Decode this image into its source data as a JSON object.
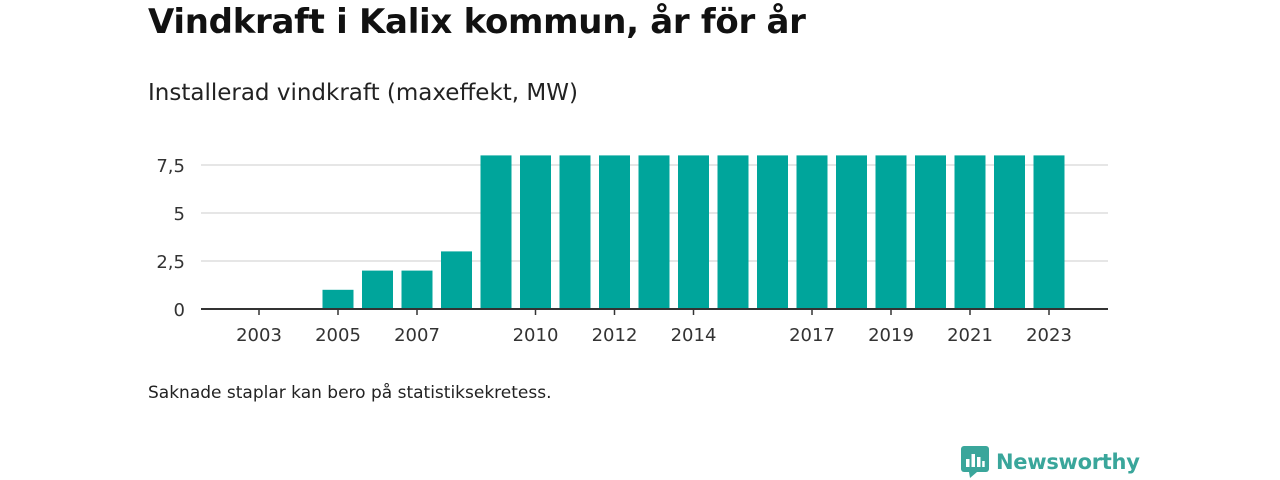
{
  "title": "Vindkraft i Kalix kommun, år för år",
  "subtitle": "Installerad vindkraft (maxeffekt, MW)",
  "note": "Saknade staplar kan bero på statistiksekretess.",
  "brand": {
    "name": "Newsworthy",
    "logo_icon": "newsworthy-logo-icon"
  },
  "colors": {
    "bar": "#00a59b",
    "grid": "#dddddd",
    "axis": "#333333",
    "brand": "#3aa69b"
  },
  "chart_data": {
    "type": "bar",
    "categories": [
      "2003",
      "2004",
      "2005",
      "2006",
      "2007",
      "2008",
      "2009",
      "2010",
      "2011",
      "2012",
      "2013",
      "2014",
      "2015",
      "2016",
      "2017",
      "2018",
      "2019",
      "2020",
      "2021",
      "2022",
      "2023"
    ],
    "values": [
      0,
      0,
      1,
      2,
      2,
      3,
      8,
      8,
      8,
      8,
      8,
      8,
      8,
      8,
      8,
      8,
      8,
      8,
      8,
      8,
      8
    ],
    "x_tick_labels": [
      "2003",
      "2005",
      "2007",
      "2010",
      "2012",
      "2014",
      "2017",
      "2019",
      "2021",
      "2023"
    ],
    "y_ticks": [
      {
        "value": 0,
        "label": "0"
      },
      {
        "value": 2.5,
        "label": "2,5"
      },
      {
        "value": 5,
        "label": "5"
      },
      {
        "value": 7.5,
        "label": "7,5"
      }
    ],
    "ylim": [
      0,
      8
    ],
    "grid": true,
    "legend": "none"
  }
}
